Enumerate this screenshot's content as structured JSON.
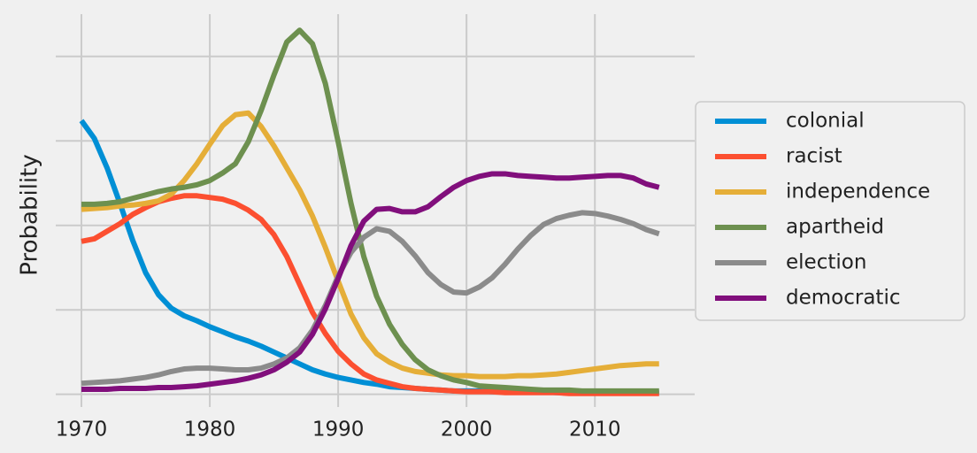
{
  "chart_data": {
    "type": "line",
    "y_label": "Probability",
    "x": [
      1970,
      1971,
      1972,
      1973,
      1974,
      1975,
      1976,
      1977,
      1978,
      1979,
      1980,
      1981,
      1982,
      1983,
      1984,
      1985,
      1986,
      1987,
      1988,
      1989,
      1990,
      1991,
      1992,
      1993,
      1994,
      1995,
      1996,
      1997,
      1998,
      1999,
      2000,
      2001,
      2002,
      2003,
      2004,
      2005,
      2006,
      2007,
      2008,
      2009,
      2010,
      2011,
      2012,
      2013,
      2014,
      2015
    ],
    "series": [
      {
        "name": "colonial",
        "color": "#008fd5",
        "values": [
          3.24,
          3.03,
          2.68,
          2.26,
          1.82,
          1.44,
          1.18,
          1.02,
          0.93,
          0.87,
          0.8,
          0.74,
          0.68,
          0.63,
          0.57,
          0.5,
          0.43,
          0.36,
          0.29,
          0.24,
          0.2,
          0.17,
          0.14,
          0.12,
          0.09,
          0.08,
          0.07,
          0.06,
          0.05,
          0.04,
          0.04,
          0.04,
          0.03,
          0.03,
          0.03,
          0.03,
          0.03,
          0.02,
          0.02,
          0.02,
          0.02,
          0.02,
          0.02,
          0.02,
          0.02,
          0.02
        ]
      },
      {
        "name": "racist",
        "color": "#fc4f30",
        "values": [
          1.81,
          1.84,
          1.93,
          2.02,
          2.13,
          2.21,
          2.28,
          2.32,
          2.35,
          2.35,
          2.33,
          2.31,
          2.26,
          2.18,
          2.07,
          1.89,
          1.63,
          1.3,
          0.97,
          0.72,
          0.51,
          0.36,
          0.24,
          0.17,
          0.13,
          0.09,
          0.07,
          0.06,
          0.05,
          0.04,
          0.03,
          0.03,
          0.03,
          0.02,
          0.02,
          0.02,
          0.02,
          0.02,
          0.01,
          0.01,
          0.01,
          0.01,
          0.01,
          0.01,
          0.01,
          0.01
        ]
      },
      {
        "name": "independence",
        "color": "#e5ae38",
        "values": [
          2.19,
          2.2,
          2.21,
          2.23,
          2.24,
          2.26,
          2.29,
          2.37,
          2.53,
          2.73,
          2.96,
          3.18,
          3.31,
          3.33,
          3.17,
          2.94,
          2.68,
          2.42,
          2.11,
          1.74,
          1.34,
          0.95,
          0.67,
          0.48,
          0.38,
          0.31,
          0.27,
          0.25,
          0.23,
          0.22,
          0.22,
          0.21,
          0.21,
          0.21,
          0.22,
          0.22,
          0.23,
          0.24,
          0.26,
          0.28,
          0.3,
          0.32,
          0.34,
          0.35,
          0.36,
          0.36
        ]
      },
      {
        "name": "apartheid",
        "color": "#6d904f",
        "values": [
          2.25,
          2.25,
          2.26,
          2.28,
          2.32,
          2.36,
          2.4,
          2.43,
          2.45,
          2.48,
          2.53,
          2.62,
          2.73,
          2.99,
          3.36,
          3.78,
          4.17,
          4.31,
          4.15,
          3.68,
          2.99,
          2.26,
          1.63,
          1.16,
          0.83,
          0.59,
          0.41,
          0.29,
          0.22,
          0.17,
          0.14,
          0.1,
          0.09,
          0.08,
          0.07,
          0.06,
          0.05,
          0.05,
          0.05,
          0.04,
          0.04,
          0.04,
          0.04,
          0.04,
          0.04,
          0.04
        ]
      },
      {
        "name": "election",
        "color": "#8b8b8b",
        "values": [
          0.13,
          0.14,
          0.15,
          0.16,
          0.18,
          0.2,
          0.23,
          0.27,
          0.3,
          0.31,
          0.31,
          0.3,
          0.29,
          0.29,
          0.31,
          0.36,
          0.43,
          0.55,
          0.76,
          1.05,
          1.4,
          1.68,
          1.86,
          1.96,
          1.93,
          1.81,
          1.64,
          1.44,
          1.3,
          1.21,
          1.2,
          1.27,
          1.38,
          1.54,
          1.72,
          1.88,
          2.01,
          2.08,
          2.12,
          2.15,
          2.14,
          2.11,
          2.07,
          2.02,
          1.95,
          1.9
        ]
      },
      {
        "name": "democratic",
        "color": "#810f7c",
        "values": [
          0.06,
          0.06,
          0.06,
          0.07,
          0.07,
          0.07,
          0.08,
          0.08,
          0.09,
          0.1,
          0.12,
          0.14,
          0.16,
          0.19,
          0.23,
          0.29,
          0.38,
          0.5,
          0.71,
          1.01,
          1.37,
          1.76,
          2.05,
          2.19,
          2.2,
          2.16,
          2.16,
          2.22,
          2.34,
          2.45,
          2.53,
          2.58,
          2.61,
          2.61,
          2.59,
          2.58,
          2.57,
          2.56,
          2.56,
          2.57,
          2.58,
          2.59,
          2.59,
          2.56,
          2.49,
          2.45
        ]
      }
    ],
    "xlim": [
      1968,
      2017.5
    ],
    "xticks": [
      1970,
      1980,
      1990,
      2000,
      2010
    ],
    "ylim": [
      -0.15,
      4.5
    ],
    "yticks": [
      0,
      1,
      2,
      3,
      4
    ],
    "ytick_labels": false,
    "grid": true,
    "legend": "outside right"
  }
}
